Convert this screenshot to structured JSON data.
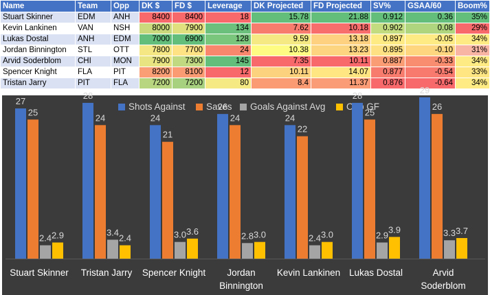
{
  "table": {
    "headers": [
      "Name",
      "Team",
      "Opp",
      "DK $",
      "FD $",
      "Leverage",
      "DK Projected",
      "FD Projected",
      "SV%",
      "GSAA/60",
      "Boom%"
    ],
    "rows": [
      [
        "Stuart Skinner",
        "EDM",
        "ANH",
        "8400",
        "8400",
        "18",
        "15.78",
        "21.88",
        "0.912",
        "0.36",
        "35%"
      ],
      [
        "Kevin Lankinen",
        "VAN",
        "NSH",
        "8000",
        "7900",
        "134",
        "7.62",
        "10.18",
        "0.902",
        "0.08",
        "29%"
      ],
      [
        "Lukas Dostal",
        "ANH",
        "EDM",
        "7000",
        "6900",
        "128",
        "9.59",
        "13.18",
        "0.897",
        "-0.05",
        "34%"
      ],
      [
        "Jordan Binnington",
        "STL",
        "OTT",
        "7800",
        "7700",
        "24",
        "10.38",
        "13.23",
        "0.895",
        "-0.10",
        "31%"
      ],
      [
        "Arvid Soderblom",
        "CHI",
        "MON",
        "7900",
        "7300",
        "145",
        "7.35",
        "10.11",
        "0.887",
        "-0.33",
        "34%"
      ],
      [
        "Spencer Knight",
        "FLA",
        "PIT",
        "8200",
        "8100",
        "12",
        "10.11",
        "14.07",
        "0.877",
        "-0.54",
        "33%"
      ],
      [
        "Tristan Jarry",
        "PIT",
        "FLA",
        "7200",
        "7200",
        "80",
        "8.4",
        "11.37",
        "0.876",
        "-0.64",
        "34%"
      ]
    ],
    "cell_colors": [
      [
        "",
        "",
        "",
        "#f8696b",
        "#f8696b",
        "#f8696b",
        "#63be7b",
        "#63be7b",
        "#63be7b",
        "#63be7b",
        "#63be7b"
      ],
      [
        "",
        "",
        "",
        "#c9d97b",
        "#e0e07f",
        "#6bc17c",
        "#f87c6d",
        "#f86e6c",
        "#c4dc80",
        "#b0d57f",
        "#f8696b"
      ],
      [
        "",
        "",
        "",
        "#63be7b",
        "#63be7b",
        "#7ac67d",
        "#f4e983",
        "#fdd17f",
        "#ffeb84",
        "#ffeb84",
        "#ffeb84"
      ],
      [
        "",
        "",
        "",
        "#f5e884",
        "#ffe283",
        "#f8876e",
        "#fffc84",
        "#fdd47f",
        "#fee182",
        "#fed680",
        "#f9b5a4"
      ],
      [
        "",
        "",
        "",
        "#e8e482",
        "#c1da81",
        "#63be7b",
        "#f8696b",
        "#f8696b",
        "#fa9d75",
        "#f88d70",
        "#ffeb84"
      ],
      [
        "",
        "",
        "",
        "#fa9e75",
        "#fb9b74",
        "#f8696b",
        "#fdd27f",
        "#ffe683",
        "#f87c6e",
        "#f87a6e",
        "#ffe683"
      ],
      [
        "",
        "",
        "",
        "#b8d680",
        "#a8d17f",
        "#f4e983",
        "#fa9b74",
        "#fa9c75",
        "#f8696b",
        "#f8696b",
        "#ffeb84"
      ]
    ]
  },
  "chart_data": {
    "type": "bar",
    "categories": [
      "Stuart Skinner",
      "Tristan Jarry",
      "Spencer Knight",
      "Jordan Binnington",
      "Kevin Lankinen",
      "Lukas Dostal",
      "Arvid Soderblom"
    ],
    "category_label_lines": [
      [
        "Stuart Skinner"
      ],
      [
        "Tristan Jarry"
      ],
      [
        "Spencer Knight"
      ],
      [
        "Jordan",
        "Binnington"
      ],
      [
        "Kevin Lankinen"
      ],
      [
        "Lukas Dostal"
      ],
      [
        "Arvid",
        "Soderblom"
      ]
    ],
    "series": [
      {
        "name": "Shots Against",
        "color": "#4472c4",
        "values": [
          27,
          28,
          24,
          26,
          24,
          28,
          29
        ],
        "labels": [
          "27",
          "28",
          "24",
          "26",
          "24",
          "28",
          "29"
        ]
      },
      {
        "name": "Saves",
        "color": "#ed7d31",
        "values": [
          25,
          24,
          21,
          24,
          22,
          25,
          26
        ],
        "labels": [
          "25",
          "24",
          "21",
          "24",
          "22",
          "25",
          "26"
        ]
      },
      {
        "name": "Goals Against Avg",
        "color": "#a5a5a5",
        "values": [
          2.4,
          3.4,
          3.0,
          2.8,
          2.4,
          2.9,
          3.3
        ],
        "labels": [
          "2.4",
          "3.4",
          "3.0",
          "2.8",
          "2.4",
          "2.9",
          "3.3"
        ]
      },
      {
        "name": "Opp GF",
        "color": "#ffc000",
        "values": [
          2.9,
          2.4,
          3.6,
          3.0,
          3.0,
          3.9,
          3.7
        ],
        "labels": [
          "2.9",
          "2.4",
          "3.6",
          "3.0",
          "3.0",
          "3.9",
          "3.7"
        ]
      }
    ],
    "ylim": [
      0,
      32
    ],
    "legend_position": "top",
    "grid": false,
    "title": "",
    "xlabel": "",
    "ylabel": ""
  }
}
